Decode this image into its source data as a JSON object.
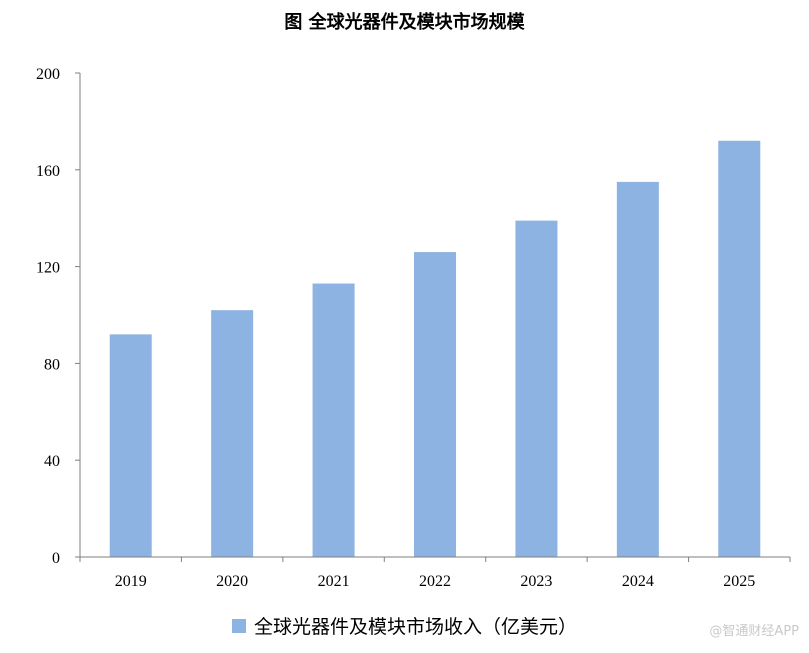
{
  "colors": {
    "bar": "#8db3e2",
    "axis": "#7f7f7f",
    "text": "#000000",
    "watermark": "#c9c9c9"
  },
  "watermark": "@智通财经APP",
  "chart_data": {
    "type": "bar",
    "title": "图 全球光器件及模块市场规模",
    "categories": [
      "2019",
      "2020",
      "2021",
      "2022",
      "2023",
      "2024",
      "2025"
    ],
    "series": [
      {
        "name": "全球光器件及模块市场收入（亿美元）",
        "values": [
          92,
          102,
          113,
          126,
          139,
          155,
          172
        ]
      }
    ],
    "ylim": [
      0,
      200
    ],
    "yticks": [
      "0",
      "40",
      "80",
      "120",
      "160",
      "200"
    ],
    "grid": false,
    "legend_position": "bottom"
  }
}
